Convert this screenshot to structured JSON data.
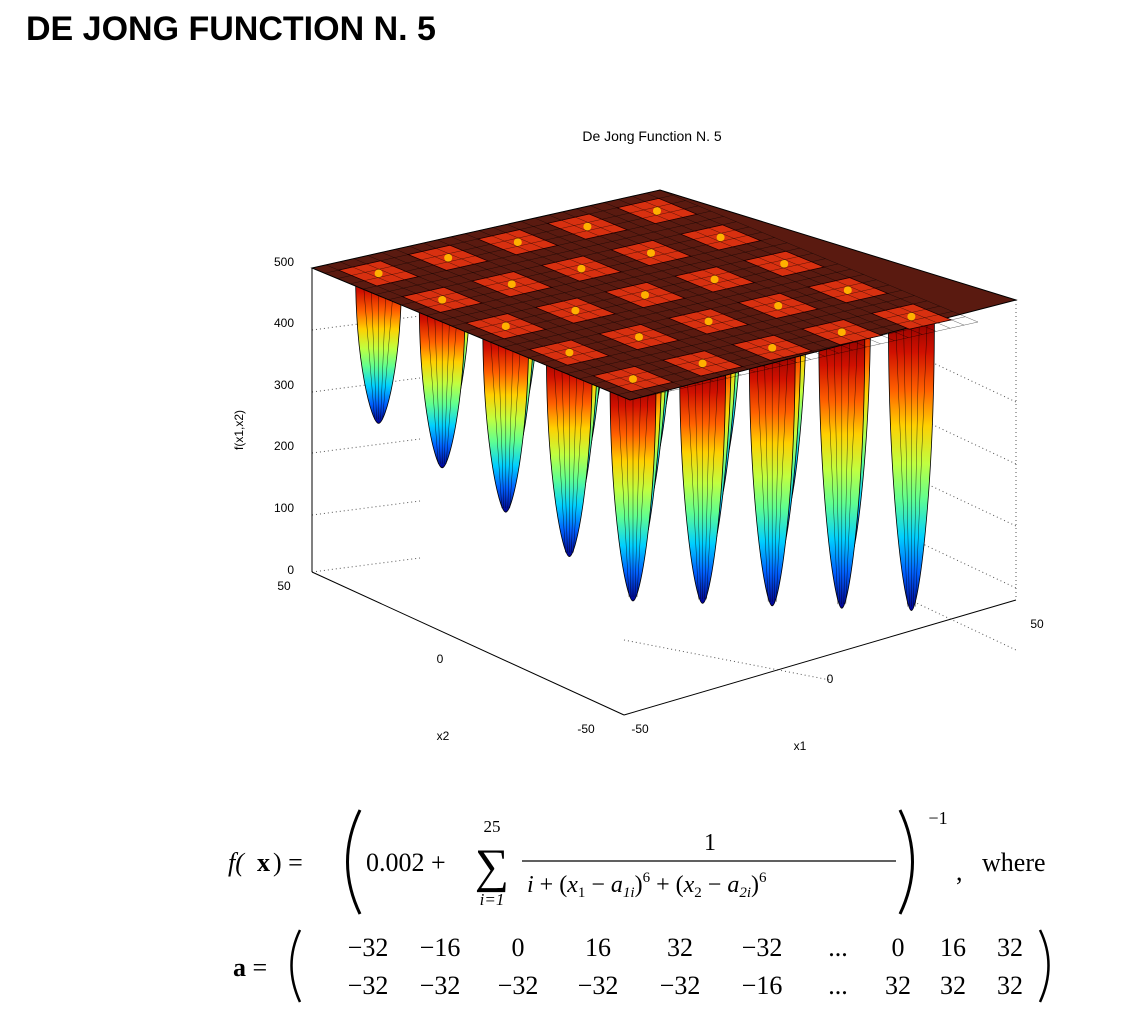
{
  "page_title": "DE JONG FUNCTION N. 5",
  "figure": {
    "title": "De Jong Function N. 5",
    "zlabel": "f(x1,x2)",
    "xlabel": "x1",
    "ylabel": "x2",
    "z_ticks": [
      "500",
      "400",
      "300",
      "200",
      "100",
      "0"
    ],
    "x1_ticks": [
      "-50",
      "0",
      "50"
    ],
    "x2_ticks": [
      "50",
      "0",
      "-50"
    ],
    "colormap": [
      "#00008f",
      "#0050ff",
      "#00c0ff",
      "#40ff80",
      "#c0ff40",
      "#ffc000",
      "#ff4000",
      "#a00000",
      "#600000"
    ]
  },
  "formula": {
    "lhs": "f(x) =",
    "lparen_const": "0.002 +",
    "sum_upper": "25",
    "sum_lower": "i=1",
    "numerator": "1",
    "denominator": "i + (x1 − a1i)6 + (x2 − a2i)6",
    "exponent": "−1",
    "where": "where",
    "a_label": "a =",
    "a_row1": [
      "−32",
      "−16",
      "0",
      "16",
      "32",
      "−32",
      "...",
      "0",
      "16",
      "32"
    ],
    "a_row2": [
      "−32",
      "−32",
      "−32",
      "−32",
      "−32",
      "−16",
      "...",
      "32",
      "32",
      "32"
    ]
  }
}
